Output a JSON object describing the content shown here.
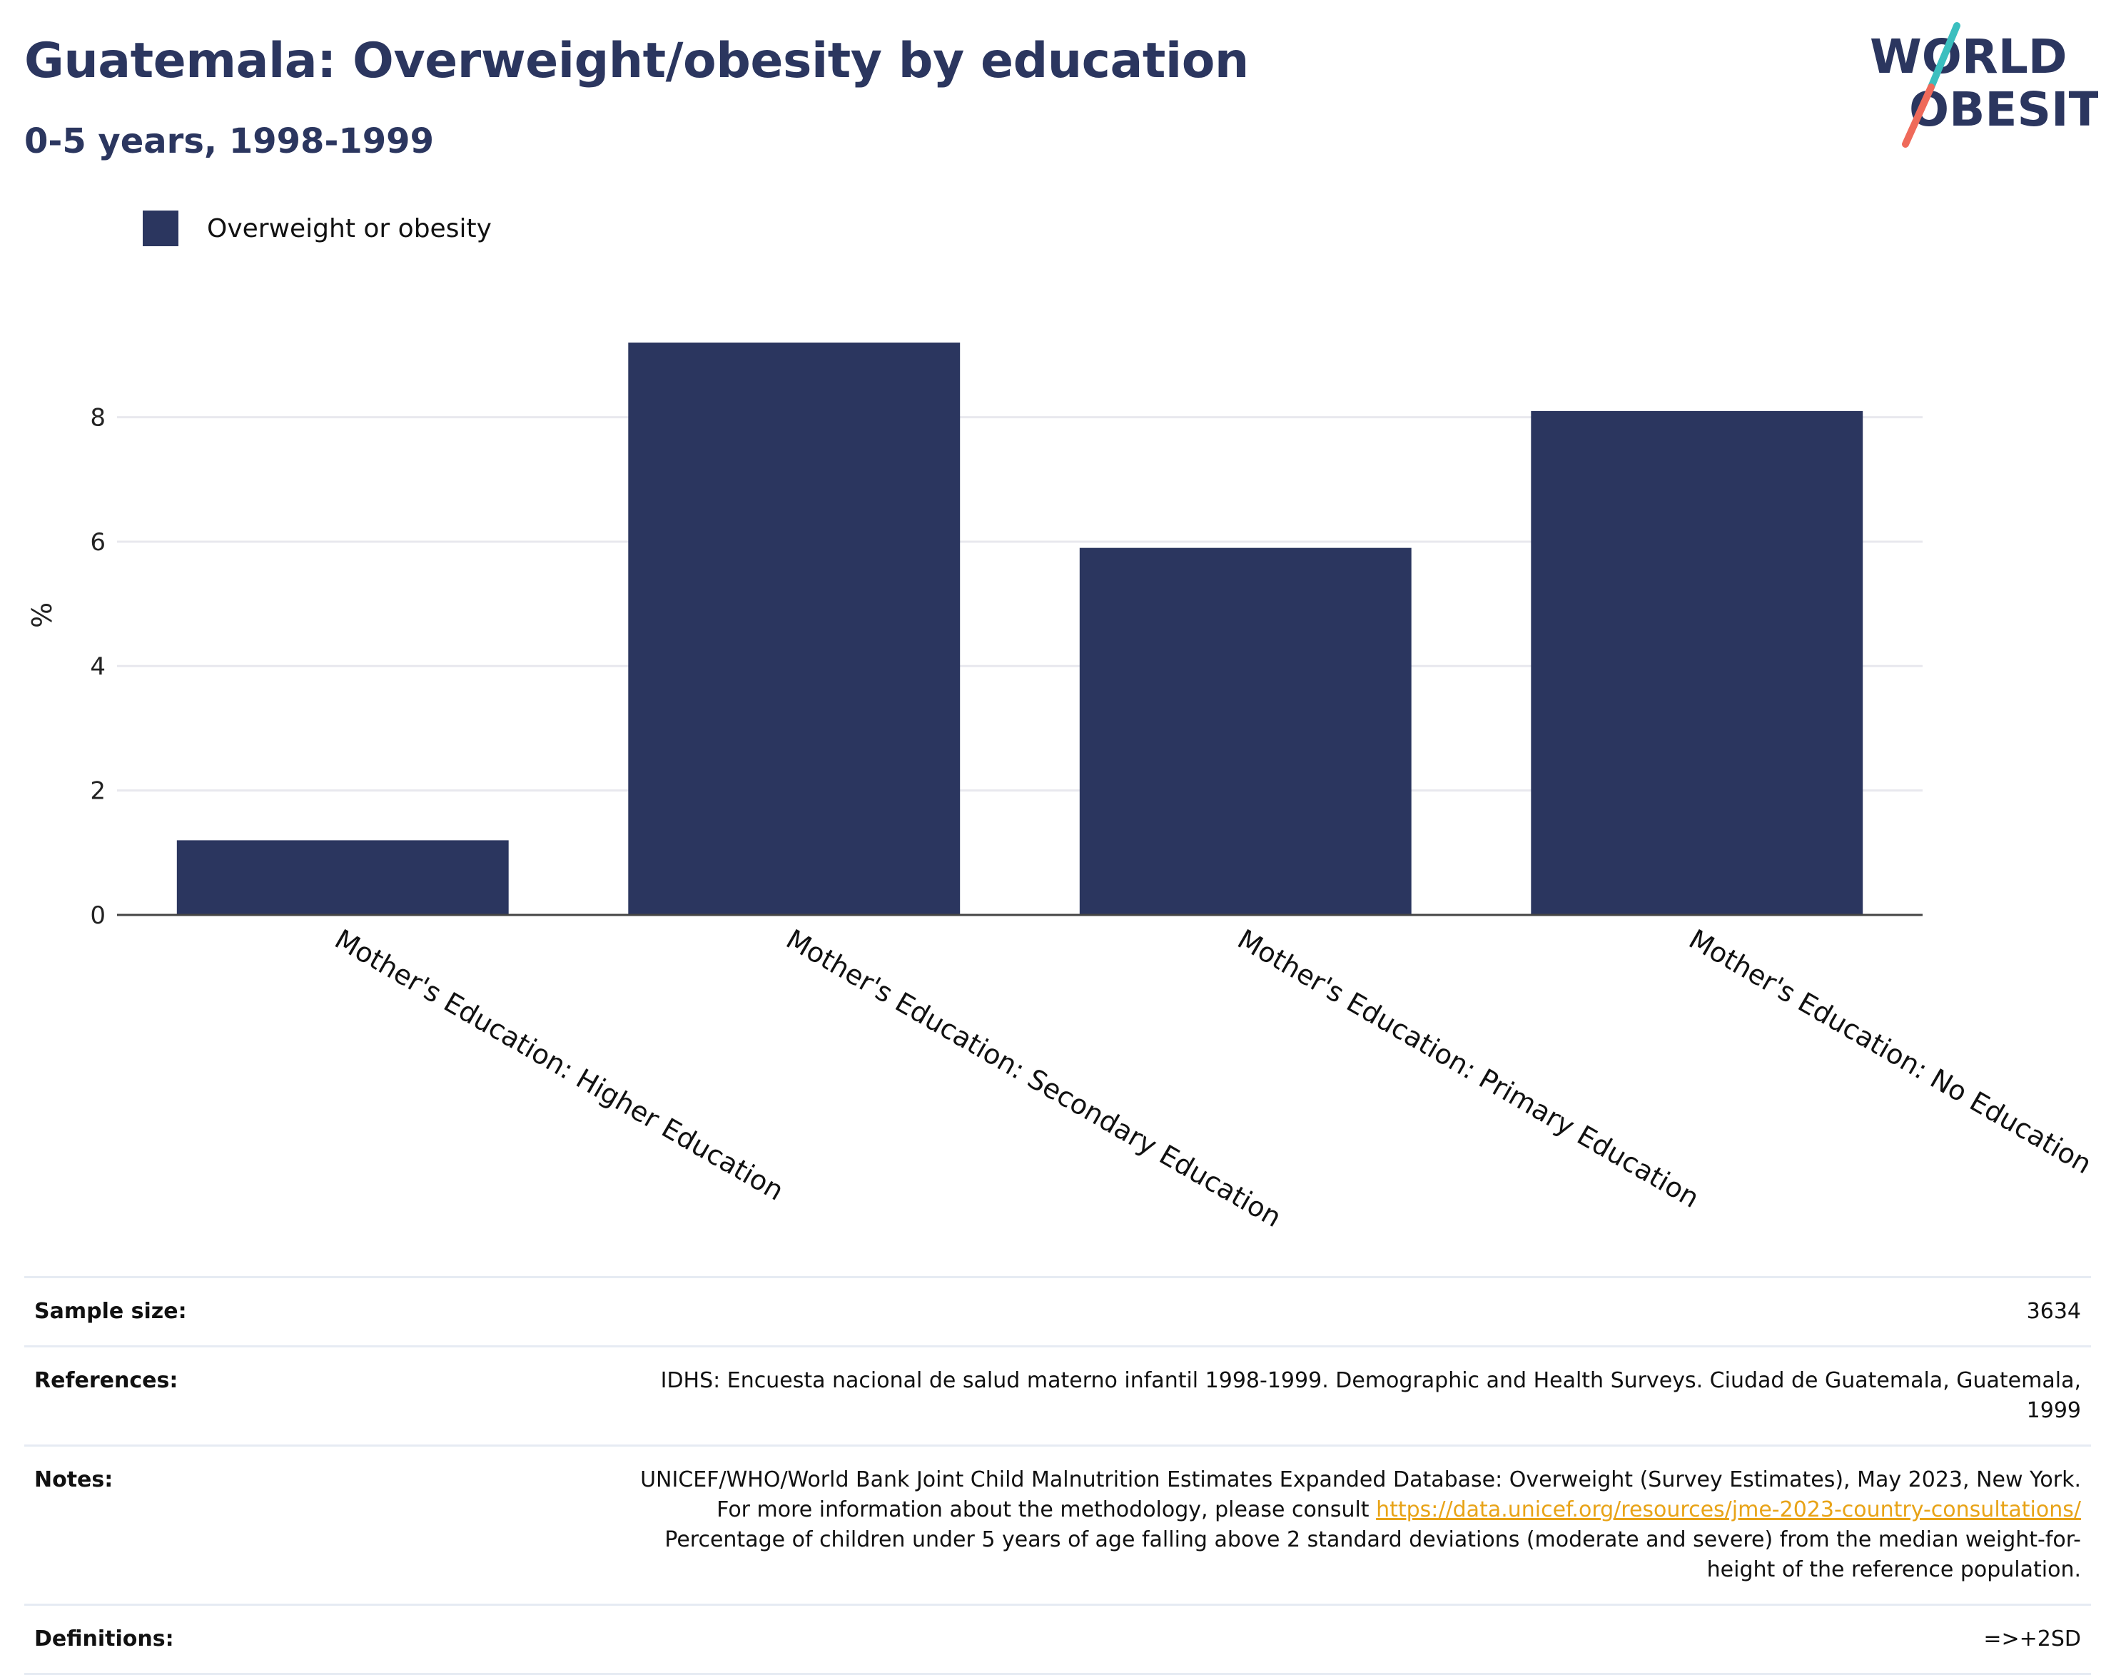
{
  "header": {
    "title": "Guatemala: Overweight/obesity by education",
    "subtitle": "0-5 years, 1998-1999"
  },
  "logo": {
    "text_line1": "WORLD",
    "text_line2": "OBESITY",
    "colors": {
      "text": "#2b365f",
      "slash_top": "#3bbfbf",
      "slash_bottom": "#ef6a5a"
    }
  },
  "colors": {
    "bar": "#2b365f",
    "title": "#2b365f",
    "grid": "#e8e8ee",
    "axis": "#444444"
  },
  "chart_data": {
    "type": "bar",
    "title": "Guatemala: Overweight/obesity by education",
    "subtitle": "0-5 years, 1998-1999",
    "categories": [
      "Mother's Education: Higher Education",
      "Mother's Education: Secondary Education",
      "Mother's Education: Primary Education",
      "Mother's Education: No Education"
    ],
    "series": [
      {
        "name": "Overweight or obesity",
        "values": [
          1.2,
          9.2,
          5.9,
          8.1
        ]
      }
    ],
    "xlabel": "",
    "ylabel": "%",
    "ylim": [
      0,
      9.2
    ],
    "yticks": [
      0,
      2,
      4,
      6,
      8
    ],
    "grid": true,
    "legend": "top-left"
  },
  "info": [
    {
      "label": "Sample size:",
      "value": "3634"
    },
    {
      "label": "References:",
      "value": "IDHS: Encuesta nacional de salud materno infantil 1998-1999. Demographic and Health Surveys. Ciudad de Guatemala, Guatemala, 1999"
    },
    {
      "label": "Notes:",
      "value_before": "UNICEF/WHO/World Bank Joint Child Malnutrition Estimates Expanded Database: Overweight (Survey Estimates), May 2023, New York. For more information about the methodology, please consult ",
      "link": "https://data.unicef.org/resources/jme-2023-country-consultations/",
      "value_after": " Percentage of children under 5 years of age falling above 2 standard deviations (moderate and severe) from the median weight-for-height of the reference population."
    },
    {
      "label": "Definitions:",
      "value": "=>+2SD"
    }
  ]
}
